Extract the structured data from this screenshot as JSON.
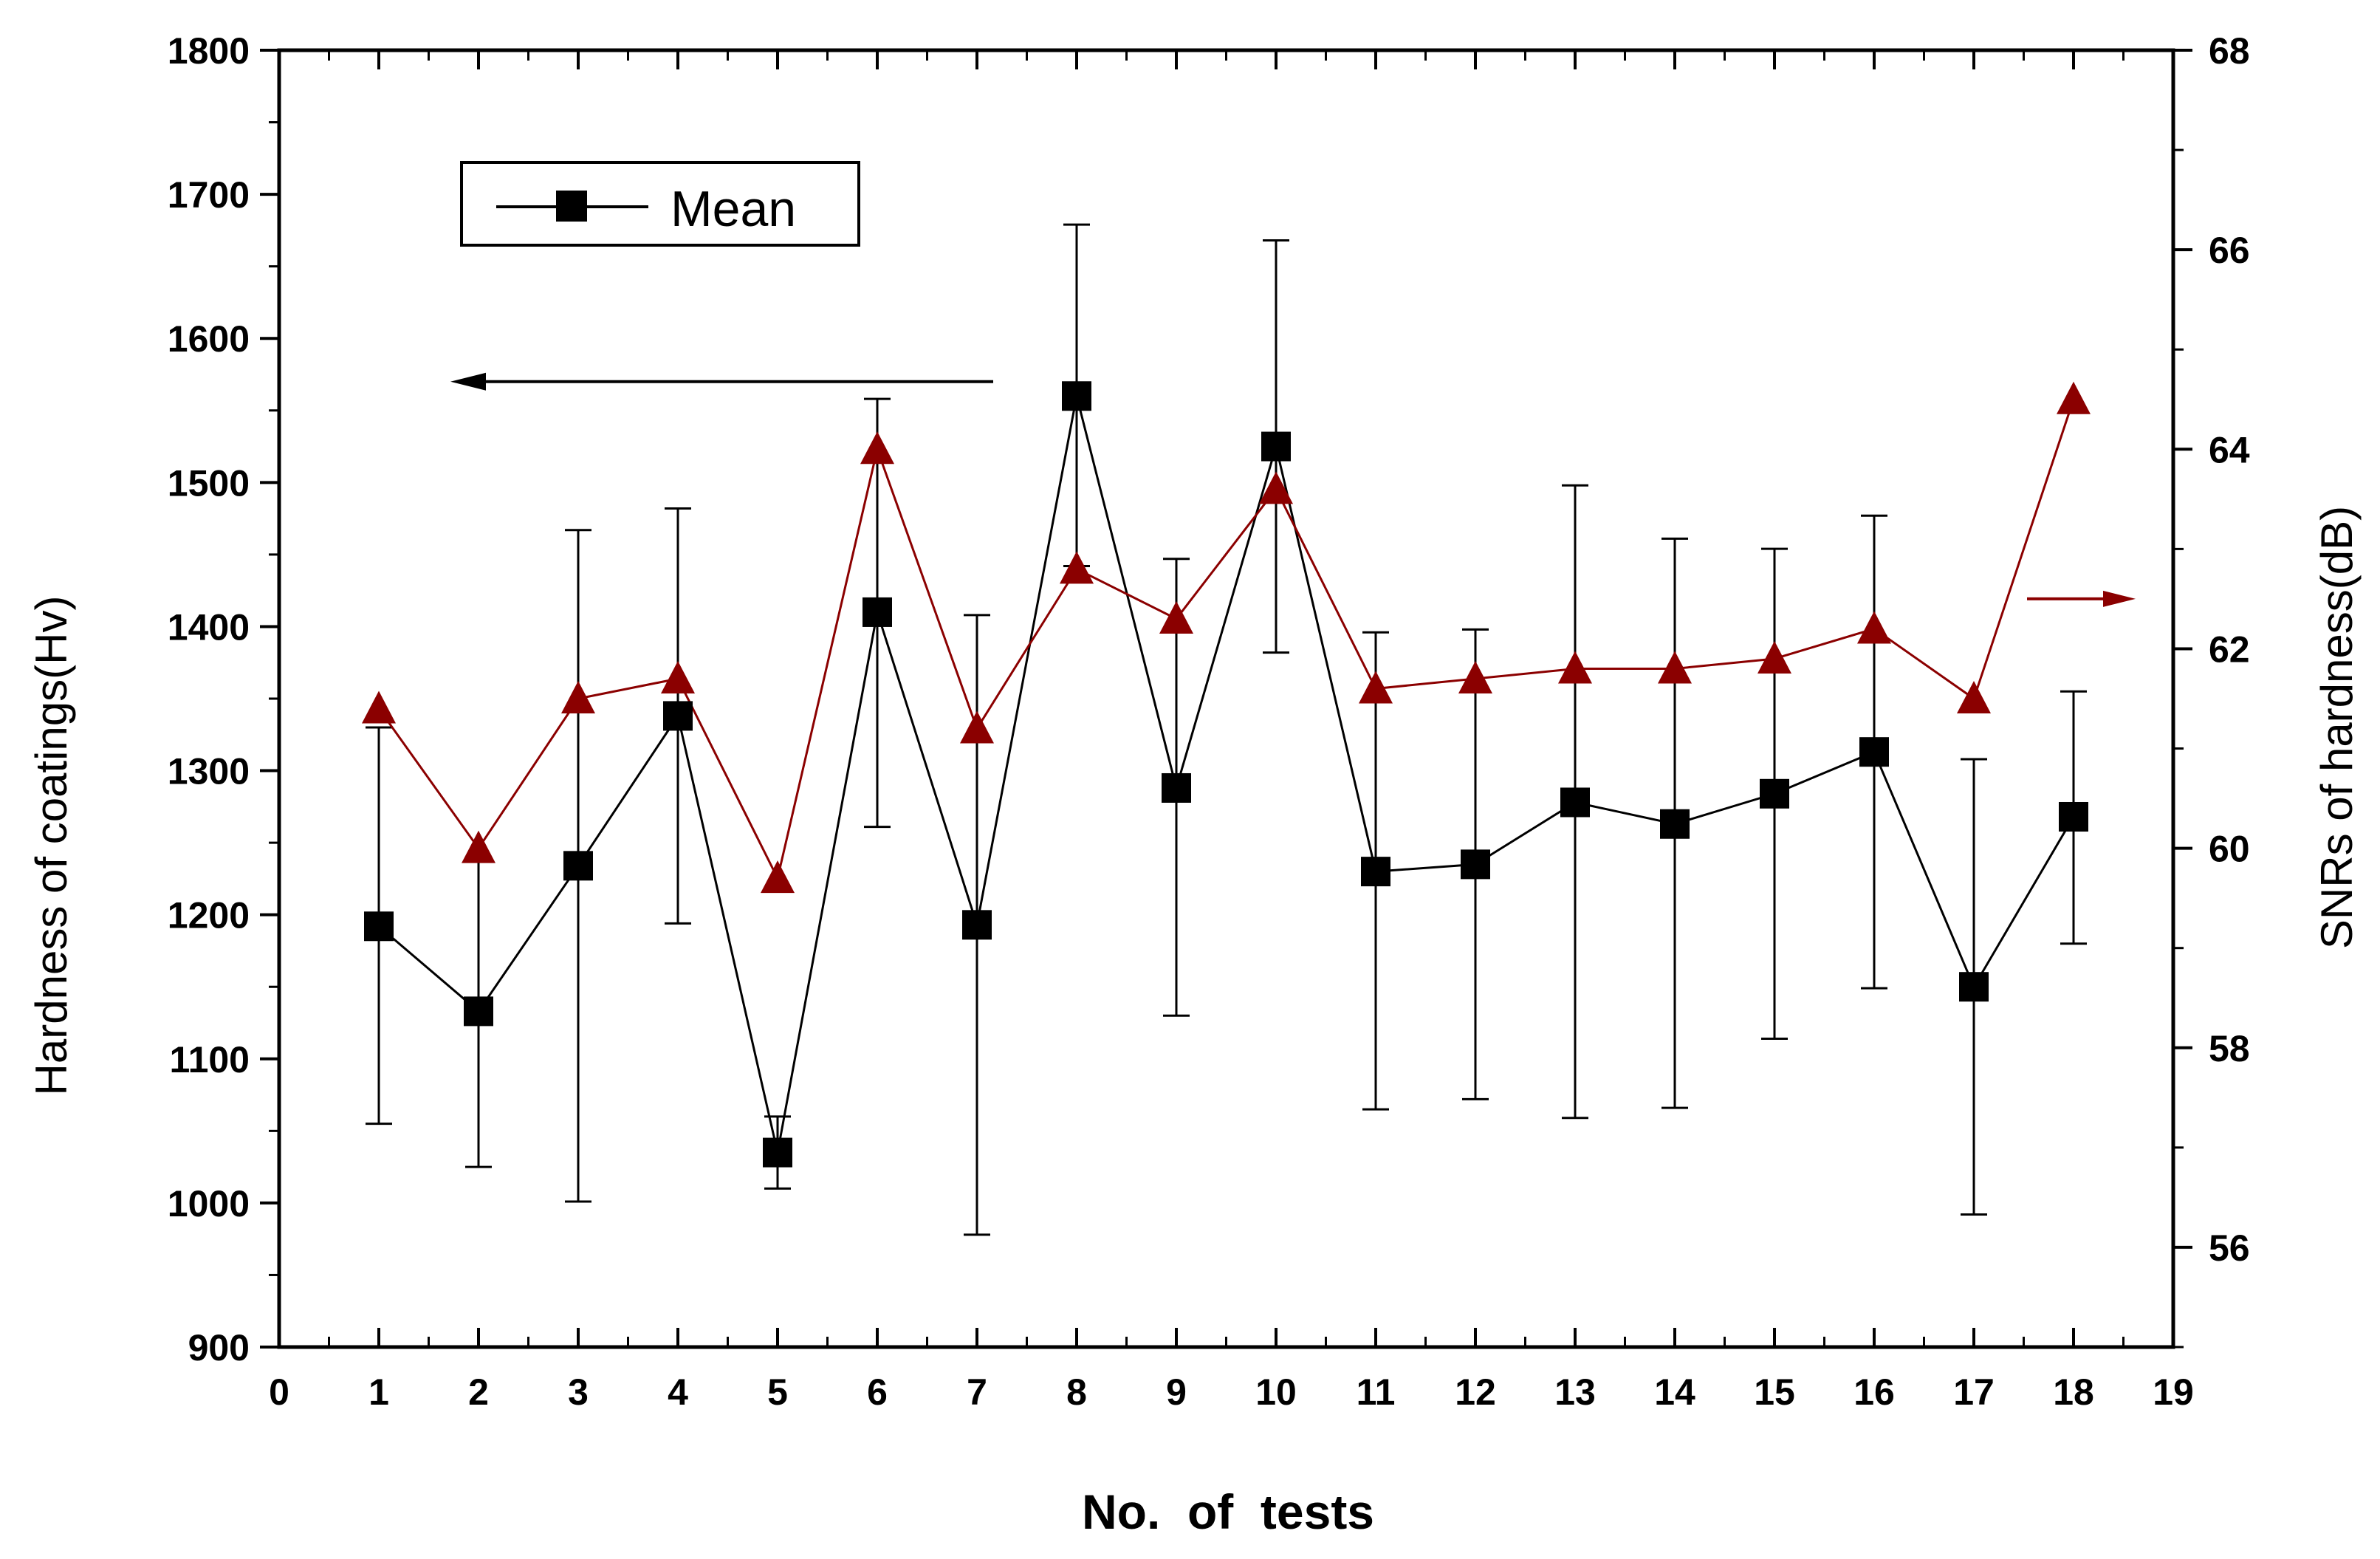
{
  "chart_data": {
    "type": "line",
    "xlabel": "No.  of  tests",
    "ylabel_left": "Hardness of coatings(Hv)",
    "ylabel_right": "SNRs of hardness(dB)",
    "xlim": [
      0,
      19
    ],
    "ylim_left": [
      900,
      1800
    ],
    "ylim_right": [
      55,
      68
    ],
    "xticks": [
      0,
      1,
      2,
      3,
      4,
      5,
      6,
      7,
      8,
      9,
      10,
      11,
      12,
      13,
      14,
      15,
      16,
      17,
      18,
      19
    ],
    "yticks_left": [
      900,
      1000,
      1100,
      1200,
      1300,
      1400,
      1500,
      1600,
      1700,
      1800
    ],
    "yticks_right": [
      56,
      58,
      60,
      62,
      64,
      66,
      68
    ],
    "grid": false,
    "legend": {
      "entries": [
        "Mean"
      ],
      "position": "top-left"
    },
    "series": [
      {
        "name": "Mean",
        "axis": "left",
        "color": "#000000",
        "marker": "square",
        "x": [
          1,
          2,
          3,
          4,
          5,
          6,
          7,
          8,
          9,
          10,
          11,
          12,
          13,
          14,
          15,
          16,
          17,
          18
        ],
        "values": [
          1192,
          1133,
          1234,
          1338,
          1035,
          1410,
          1193,
          1560,
          1288,
          1525,
          1230,
          1235,
          1278,
          1263,
          1284,
          1313,
          1150,
          1268
        ],
        "error_low": [
          1055,
          1025,
          1001,
          1194,
          1010,
          1261,
          978,
          1442,
          1130,
          1382,
          1065,
          1072,
          1059,
          1066,
          1114,
          1149,
          992,
          1180
        ],
        "error_high": [
          1330,
          1240,
          1467,
          1482,
          1060,
          1558,
          1408,
          1679,
          1447,
          1668,
          1396,
          1398,
          1498,
          1461,
          1454,
          1477,
          1308,
          1355
        ]
      },
      {
        "axis": "right",
        "color": "#8b0000",
        "marker": "triangle",
        "x": [
          1,
          2,
          3,
          4,
          5,
          6,
          7,
          8,
          9,
          10,
          11,
          12,
          13,
          14,
          15,
          16,
          17,
          18
        ],
        "values": [
          61.4,
          60.0,
          61.5,
          61.7,
          59.7,
          64.0,
          61.2,
          62.8,
          62.3,
          63.6,
          61.6,
          61.7,
          61.8,
          61.8,
          61.9,
          62.2,
          61.5,
          64.5
        ]
      }
    ],
    "annotations": [
      {
        "type": "arrow",
        "direction": "left",
        "indicates": "left-axis"
      },
      {
        "type": "arrow",
        "direction": "right",
        "indicates": "right-axis"
      }
    ]
  }
}
